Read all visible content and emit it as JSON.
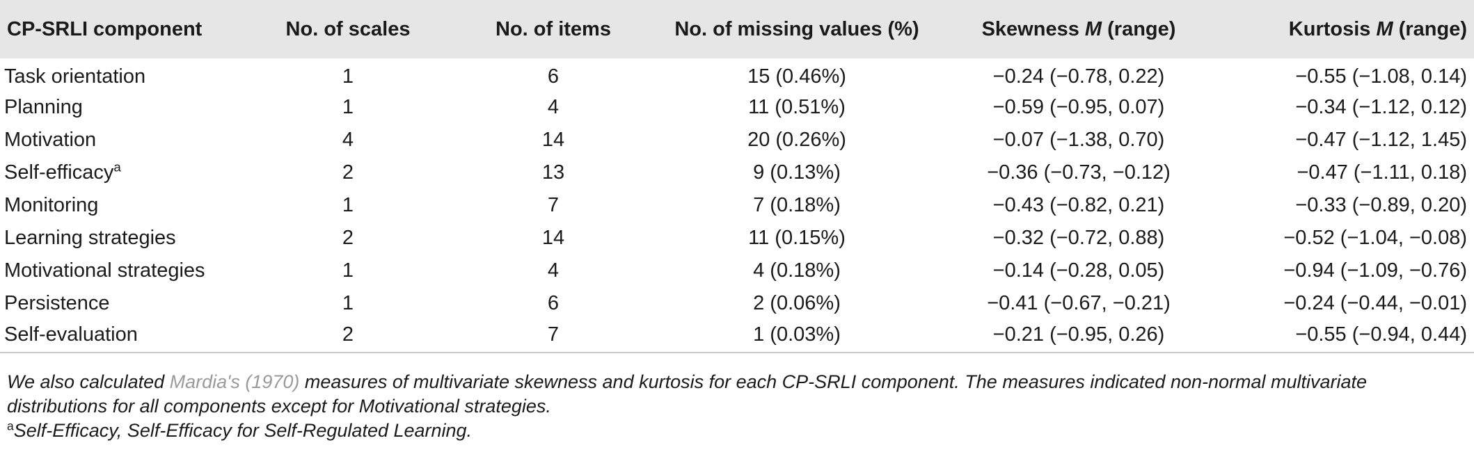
{
  "table": {
    "headers": {
      "component": "CP-SRLI component",
      "scales": "No. of scales",
      "items": "No. of items",
      "missing": "No. of missing values (%)",
      "skew_pre": "Skewness ",
      "skew_m": "M",
      "skew_post": " (range)",
      "kurt_pre": "Kurtosis ",
      "kurt_m": "M",
      "kurt_post": " (range)"
    },
    "rows": [
      {
        "component": "Task orientation",
        "sup": "",
        "scales": "1",
        "items": "6",
        "missing": "15 (0.46%)",
        "skewness": "−0.24 (−0.78, 0.22)",
        "kurtosis": "−0.55 (−1.08, 0.14)"
      },
      {
        "component": "Planning",
        "sup": "",
        "scales": "1",
        "items": "4",
        "missing": "11 (0.51%)",
        "skewness": "−0.59 (−0.95, 0.07)",
        "kurtosis": "−0.34 (−1.12, 0.12)"
      },
      {
        "component": "Motivation",
        "sup": "",
        "scales": "4",
        "items": "14",
        "missing": "20 (0.26%)",
        "skewness": "−0.07 (−1.38, 0.70)",
        "kurtosis": "−0.47 (−1.12, 1.45)"
      },
      {
        "component": "Self-efficacy",
        "sup": "a",
        "scales": "2",
        "items": "13",
        "missing": "9 (0.13%)",
        "skewness": "−0.36 (−0.73, −0.12)",
        "kurtosis": "−0.47 (−1.11, 0.18)"
      },
      {
        "component": "Monitoring",
        "sup": "",
        "scales": "1",
        "items": "7",
        "missing": "7 (0.18%)",
        "skewness": "−0.43 (−0.82, 0.21)",
        "kurtosis": "−0.33 (−0.89, 0.20)"
      },
      {
        "component": "Learning strategies",
        "sup": "",
        "scales": "2",
        "items": "14",
        "missing": "11 (0.15%)",
        "skewness": "−0.32 (−0.72, 0.88)",
        "kurtosis": "−0.52 (−1.04, −0.08)"
      },
      {
        "component": "Motivational strategies",
        "sup": "",
        "scales": "1",
        "items": "4",
        "missing": "4 (0.18%)",
        "skewness": "−0.14 (−0.28, 0.05)",
        "kurtosis": "−0.94 (−1.09, −0.76)"
      },
      {
        "component": "Persistence",
        "sup": "",
        "scales": "1",
        "items": "6",
        "missing": "2 (0.06%)",
        "skewness": "−0.41 (−0.67, −0.21)",
        "kurtosis": "−0.24 (−0.44, −0.01)"
      },
      {
        "component": "Self-evaluation",
        "sup": "",
        "scales": "2",
        "items": "7",
        "missing": "1 (0.03%)",
        "skewness": "−0.21 (−0.95, 0.26)",
        "kurtosis": "−0.55 (−0.94, 0.44)"
      }
    ]
  },
  "notes": {
    "note1_pre": "We also calculated ",
    "note1_cite": "Mardia's (1970)",
    "note1_post": " measures of multivariate skewness and kurtosis for each CP-SRLI component. The measures indicated non-normal multivariate distributions for all components except for Motivational strategies.",
    "note2_sup": "a",
    "note2_text": "Self-Efficacy, Self-Efficacy for Self-Regulated Learning."
  }
}
